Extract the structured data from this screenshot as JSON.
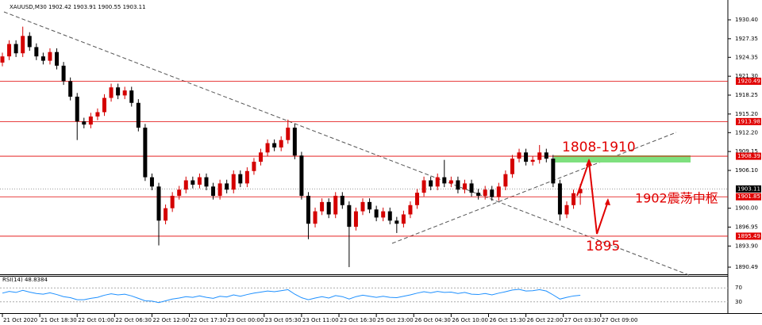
{
  "chart_data": {
    "type": "candlestick",
    "title": "XAUUSD,M30  1902.42 1903.91 1900.55 1903.11",
    "open": [
      1923.5,
      1924.5,
      1926.5,
      1925.0,
      1927.8,
      1926.0,
      1924.5,
      1923.8,
      1925.2,
      1923.0,
      1920.5,
      1918.0,
      1914.0,
      1913.5,
      1914.8,
      1915.5,
      1917.8,
      1919.5,
      1918.2,
      1919.0,
      1917.0,
      1913.0,
      1905.0,
      1903.5,
      1898.0,
      1900.0,
      1902.0,
      1903.0,
      1904.5,
      1903.8,
      1905.0,
      1903.5,
      1902.0,
      1904.0,
      1903.0,
      1905.5,
      1904.0,
      1906.0,
      1907.5,
      1909.0,
      1910.5,
      1909.8,
      1911.0,
      1913.0,
      1908.5,
      1902.0,
      1897.5,
      1899.5,
      1901.0,
      1899.0,
      1902.0,
      1900.5,
      1897.0,
      1899.5,
      1901.0,
      1899.8,
      1898.5,
      1899.5,
      1898.0,
      1897.5,
      1899.0,
      1900.5,
      1902.5,
      1904.5,
      1903.5,
      1905.0,
      1904.0,
      1904.5,
      1903.0,
      1904.0,
      1902.5,
      1902.0,
      1903.0,
      1901.8,
      1903.5,
      1905.5,
      1908.0,
      1909.0,
      1907.5,
      1907.8,
      1909.0,
      1908.0,
      1904.0,
      1899.0,
      1900.5,
      1902.42
    ],
    "high": [
      1925.1,
      1927.1,
      1927.1,
      1929.3,
      1928.4,
      1926.6,
      1925.1,
      1925.8,
      1925.8,
      1923.6,
      1921.1,
      1918.6,
      1914.6,
      1915.4,
      1916.1,
      1918.4,
      1920.1,
      1920.1,
      1919.6,
      1919.6,
      1917.6,
      1913.6,
      1905.6,
      1904.1,
      1900.6,
      1902.6,
      1903.6,
      1905.1,
      1905.1,
      1905.6,
      1905.6,
      1904.1,
      1904.6,
      1904.6,
      1906.1,
      1906.1,
      1906.6,
      1908.1,
      1909.6,
      1911.1,
      1911.1,
      1911.6,
      1914.3,
      1913.6,
      1909.1,
      1902.6,
      1900.1,
      1901.6,
      1901.6,
      1902.6,
      1902.6,
      1901.1,
      1900.1,
      1901.6,
      1901.6,
      1900.4,
      1900.1,
      1900.1,
      1898.6,
      1899.6,
      1901.1,
      1903.1,
      1905.1,
      1905.1,
      1905.6,
      1907.8,
      1905.1,
      1905.1,
      1904.6,
      1904.6,
      1903.1,
      1903.6,
      1903.6,
      1904.1,
      1906.1,
      1908.6,
      1909.6,
      1909.6,
      1908.4,
      1910.2,
      1909.6,
      1908.6,
      1904.6,
      1901.1,
      1903.0,
      1903.91
    ],
    "low": [
      1922.9,
      1923.9,
      1924.4,
      1924.4,
      1925.4,
      1923.9,
      1923.2,
      1923.2,
      1922.4,
      1919.9,
      1917.4,
      1911.0,
      1912.9,
      1912.9,
      1914.2,
      1914.9,
      1917.2,
      1917.6,
      1917.6,
      1916.4,
      1912.4,
      1904.4,
      1902.9,
      1894.0,
      1897.4,
      1899.4,
      1901.4,
      1902.4,
      1903.2,
      1903.2,
      1902.9,
      1901.4,
      1901.4,
      1902.4,
      1902.4,
      1903.4,
      1903.4,
      1905.4,
      1906.9,
      1908.4,
      1909.2,
      1909.2,
      1910.4,
      1907.9,
      1901.4,
      1895.0,
      1896.9,
      1898.9,
      1898.4,
      1898.4,
      1899.9,
      1890.5,
      1896.4,
      1898.9,
      1899.2,
      1897.9,
      1897.9,
      1897.4,
      1896.0,
      1896.9,
      1898.4,
      1899.9,
      1901.9,
      1902.9,
      1902.9,
      1903.4,
      1903.4,
      1902.4,
      1902.4,
      1901.9,
      1901.4,
      1901.4,
      1901.2,
      1901.2,
      1902.9,
      1904.9,
      1907.4,
      1906.9,
      1906.9,
      1907.2,
      1907.4,
      1903.4,
      1898.0,
      1898.4,
      1899.9,
      1900.55
    ],
    "close": [
      1924.5,
      1926.5,
      1925.0,
      1927.8,
      1926.0,
      1924.5,
      1923.8,
      1925.2,
      1923.0,
      1920.5,
      1918.0,
      1914.0,
      1913.5,
      1914.8,
      1915.5,
      1917.8,
      1919.5,
      1918.2,
      1919.0,
      1917.0,
      1913.0,
      1905.0,
      1903.5,
      1898.0,
      1900.0,
      1902.0,
      1903.0,
      1904.5,
      1903.8,
      1905.0,
      1903.5,
      1902.0,
      1904.0,
      1903.0,
      1905.5,
      1904.0,
      1906.0,
      1907.5,
      1909.0,
      1910.5,
      1909.8,
      1911.0,
      1913.0,
      1908.5,
      1902.0,
      1897.5,
      1899.5,
      1901.0,
      1899.0,
      1902.0,
      1900.5,
      1897.0,
      1899.5,
      1901.0,
      1899.8,
      1898.5,
      1899.5,
      1898.0,
      1897.5,
      1899.0,
      1900.5,
      1902.5,
      1904.5,
      1903.5,
      1905.0,
      1904.0,
      1904.5,
      1903.0,
      1904.0,
      1902.5,
      1902.0,
      1903.0,
      1901.8,
      1903.5,
      1905.5,
      1908.0,
      1909.0,
      1907.5,
      1907.8,
      1909.0,
      1908.0,
      1904.0,
      1899.0,
      1900.5,
      1902.42,
      1903.11
    ],
    "up_color": "#d40000",
    "down_color": "#000000",
    "xlim": [
      -0.35,
      106.7
    ],
    "xticks": [
      {
        "value": 0,
        "label": "21 Oct 2020"
      },
      {
        "value": 5.5,
        "label": "21 Oct 18:30"
      },
      {
        "value": 11,
        "label": "22 Oct 01:00"
      },
      {
        "value": 16.5,
        "label": "22 Oct 06:30"
      },
      {
        "value": 22,
        "label": "22 Oct 12:00"
      },
      {
        "value": 27.5,
        "label": "22 Oct 17:30"
      },
      {
        "value": 33,
        "label": "23 Oct 00:00"
      },
      {
        "value": 38.5,
        "label": "23 Oct 05:30"
      },
      {
        "value": 44,
        "label": "23 Oct 11:00"
      },
      {
        "value": 49.5,
        "label": "23 Oct 16:30"
      },
      {
        "value": 55,
        "label": "25 Oct 23:00"
      },
      {
        "value": 60.5,
        "label": "26 Oct 04:30"
      },
      {
        "value": 66,
        "label": "26 Oct 10:00"
      },
      {
        "value": 71.5,
        "label": "26 Oct 15:30"
      },
      {
        "value": 77,
        "label": "26 Oct 22:00"
      },
      {
        "value": 82.5,
        "label": "27 Oct 03:30"
      },
      {
        "value": 88,
        "label": "27 Oct 09:00"
      }
    ],
    "ylim": [
      1889.47,
      1932.96
    ],
    "yticks": [
      {
        "value": 1930.4,
        "label": "1930.40"
      },
      1927.35,
      1924.35,
      {
        "value": 1921.3,
        "label": "1921.30"
      },
      1918.25,
      {
        "value": 1915.2,
        "label": "1915.20"
      },
      {
        "value": 1912.2,
        "label": "1912.20"
      },
      1909.15,
      {
        "value": 1906.1,
        "label": "1906.10"
      },
      {
        "value": 1900,
        "label": "1900.00"
      },
      1896.95,
      {
        "value": 1893.9,
        "label": "1893.90"
      },
      1890.49
    ],
    "levels": [
      1920.49,
      1913.98,
      1908.39,
      1901.85,
      1895.49
    ],
    "level_color": "#e00000",
    "current_price": 1903.11,
    "annotations": [
      "1808-1910",
      "1902震荡中枢",
      "1895"
    ],
    "rsi": {
      "label": "RSI(14) 48.8384",
      "values": [
        55,
        60,
        57,
        63,
        58,
        54,
        52,
        56,
        51,
        45,
        42,
        36,
        36,
        40,
        43,
        49,
        53,
        50,
        52,
        47,
        40,
        33,
        32,
        28,
        33,
        38,
        41,
        45,
        43,
        47,
        43,
        40,
        46,
        44,
        50,
        46,
        51,
        55,
        58,
        61,
        59,
        62,
        65,
        52,
        42,
        36,
        41,
        45,
        41,
        48,
        45,
        38,
        45,
        49,
        46,
        43,
        46,
        43,
        42,
        46,
        50,
        55,
        59,
        56,
        60,
        57,
        58,
        54,
        57,
        52,
        51,
        54,
        50,
        55,
        59,
        64,
        66,
        61,
        62,
        65,
        61,
        50,
        38,
        43,
        47,
        48.8384
      ],
      "color": "#1e90ff",
      "ylim": [
        0,
        100
      ],
      "yticks": [
        70,
        30
      ]
    }
  }
}
